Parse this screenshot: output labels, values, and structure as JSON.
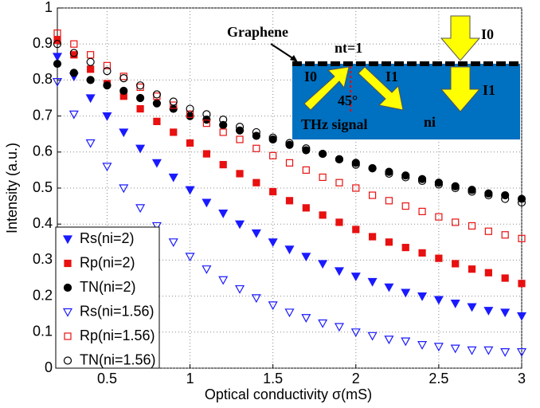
{
  "chart_data": {
    "type": "scatter",
    "xlabel": "Optical conductivity σ(mS)",
    "ylabel": "Intensity (a.u.)",
    "xlim": [
      0.2,
      3
    ],
    "ylim": [
      0,
      1
    ],
    "xticks": [
      0.5,
      1,
      1.5,
      2,
      2.5,
      3
    ],
    "yticks": [
      0,
      0.1,
      0.2,
      0.3,
      0.4,
      0.5,
      0.6,
      0.7,
      0.8,
      0.9,
      1
    ],
    "grid": true,
    "legend": "lower left",
    "x": [
      0.2,
      0.3,
      0.4,
      0.5,
      0.6,
      0.7,
      0.8,
      0.9,
      1.0,
      1.1,
      1.2,
      1.3,
      1.4,
      1.5,
      1.6,
      1.7,
      1.8,
      1.9,
      2.0,
      2.1,
      2.2,
      2.3,
      2.4,
      2.5,
      2.6,
      2.7,
      2.8,
      2.9,
      3.0
    ],
    "series": [
      {
        "name": "Rs(ni=2)",
        "color": "#1a1aff",
        "marker": "triangle-down",
        "filled": true,
        "values": [
          0.865,
          0.81,
          0.75,
          0.7,
          0.655,
          0.61,
          0.57,
          0.53,
          0.495,
          0.46,
          0.43,
          0.4,
          0.375,
          0.35,
          0.33,
          0.31,
          0.29,
          0.27,
          0.255,
          0.24,
          0.225,
          0.21,
          0.2,
          0.19,
          0.18,
          0.17,
          0.16,
          0.155,
          0.145
        ]
      },
      {
        "name": "Rp(ni=2)",
        "color": "#e81010",
        "marker": "square",
        "filled": true,
        "values": [
          0.91,
          0.87,
          0.83,
          0.79,
          0.755,
          0.72,
          0.685,
          0.655,
          0.625,
          0.595,
          0.565,
          0.54,
          0.515,
          0.49,
          0.465,
          0.445,
          0.425,
          0.405,
          0.385,
          0.365,
          0.35,
          0.335,
          0.32,
          0.305,
          0.29,
          0.275,
          0.265,
          0.25,
          0.235
        ]
      },
      {
        "name": "TN(ni=2)",
        "color": "#000000",
        "marker": "circle",
        "filled": true,
        "values": [
          0.845,
          0.82,
          0.8,
          0.785,
          0.77,
          0.75,
          0.735,
          0.72,
          0.7,
          0.69,
          0.675,
          0.66,
          0.645,
          0.635,
          0.62,
          0.605,
          0.595,
          0.58,
          0.57,
          0.555,
          0.545,
          0.535,
          0.525,
          0.515,
          0.505,
          0.495,
          0.485,
          0.48,
          0.47
        ]
      },
      {
        "name": "Rs(ni=1.56)",
        "color": "#1a1aff",
        "marker": "triangle-down",
        "filled": false,
        "values": [
          0.795,
          0.705,
          0.625,
          0.56,
          0.5,
          0.445,
          0.395,
          0.35,
          0.31,
          0.275,
          0.245,
          0.22,
          0.195,
          0.175,
          0.155,
          0.14,
          0.125,
          0.115,
          0.1,
          0.09,
          0.08,
          0.075,
          0.065,
          0.06,
          0.055,
          0.05,
          0.05,
          0.045,
          0.045
        ]
      },
      {
        "name": "Rp(ni=1.56)",
        "color": "#e81010",
        "marker": "square",
        "filled": false,
        "values": [
          0.93,
          0.9,
          0.87,
          0.84,
          0.81,
          0.78,
          0.755,
          0.73,
          0.705,
          0.68,
          0.655,
          0.635,
          0.61,
          0.59,
          0.57,
          0.55,
          0.53,
          0.515,
          0.5,
          0.48,
          0.465,
          0.45,
          0.435,
          0.42,
          0.405,
          0.395,
          0.38,
          0.37,
          0.36
        ]
      },
      {
        "name": "TN(ni=1.56)",
        "color": "#000000",
        "marker": "circle",
        "filled": false,
        "values": [
          0.9,
          0.875,
          0.85,
          0.825,
          0.805,
          0.785,
          0.76,
          0.74,
          0.72,
          0.705,
          0.69,
          0.67,
          0.655,
          0.64,
          0.625,
          0.61,
          0.595,
          0.58,
          0.565,
          0.555,
          0.54,
          0.53,
          0.52,
          0.51,
          0.5,
          0.49,
          0.48,
          0.47,
          0.46
        ]
      }
    ],
    "annotations": [
      "Graphene",
      "nt=1",
      "I0",
      "I0",
      "I1",
      "I1",
      "45°",
      "THz signal",
      "ni"
    ]
  }
}
